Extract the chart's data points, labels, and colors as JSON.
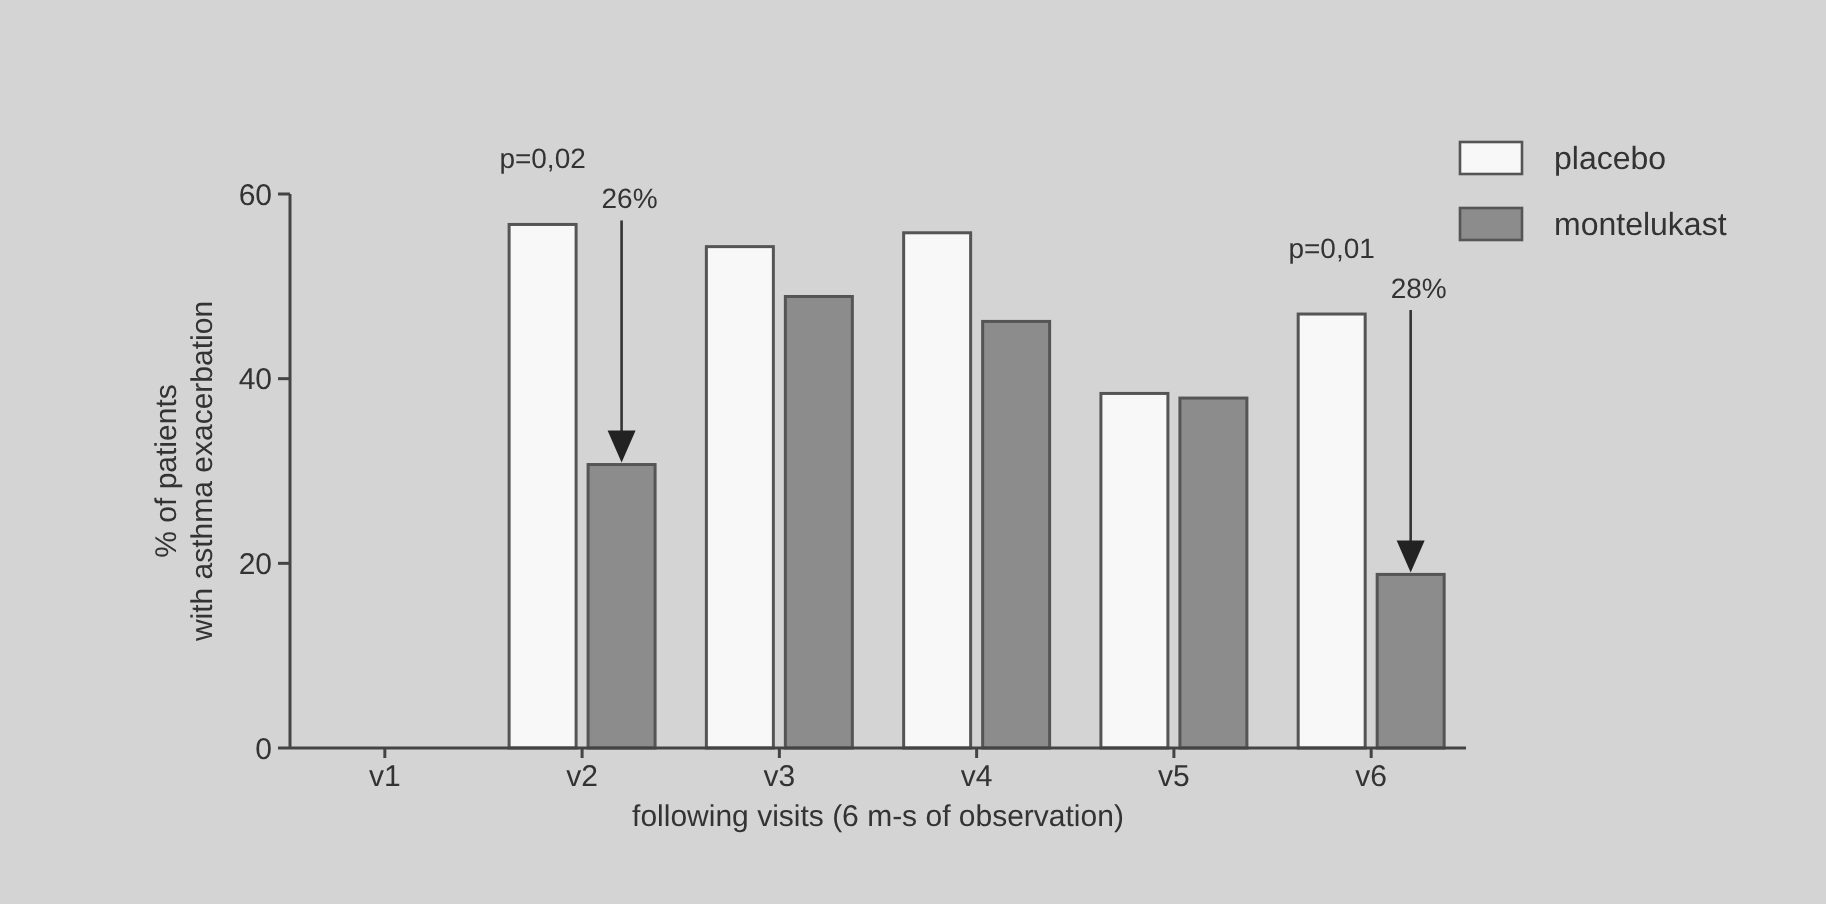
{
  "chart_data": {
    "type": "bar",
    "xlabel": "following visits (6 m-s of observation)",
    "ylabel": "% of patients\nwith asthma exacerbation",
    "categories": [
      "v1",
      "v2",
      "v3",
      "v4",
      "v5",
      "v6"
    ],
    "series": [
      {
        "name": "placebo",
        "color": "#f8f8f8",
        "values": [
          null,
          56.7,
          54.3,
          55.8,
          38.4,
          47.0
        ]
      },
      {
        "name": "montelukast",
        "color": "#8c8c8c",
        "values": [
          null,
          30.7,
          48.9,
          46.2,
          37.9,
          18.8
        ]
      }
    ],
    "ylim": [
      0,
      60
    ],
    "yticks": [
      0,
      20,
      40,
      60
    ],
    "grid": false,
    "legend": "top right",
    "annotations": [
      {
        "text": "p=0,02",
        "x": "v2",
        "y": 56.7
      },
      "26%",
      {
        "text": "p=0,01",
        "x": "v6",
        "y": 47.0
      },
      "28%"
    ]
  }
}
